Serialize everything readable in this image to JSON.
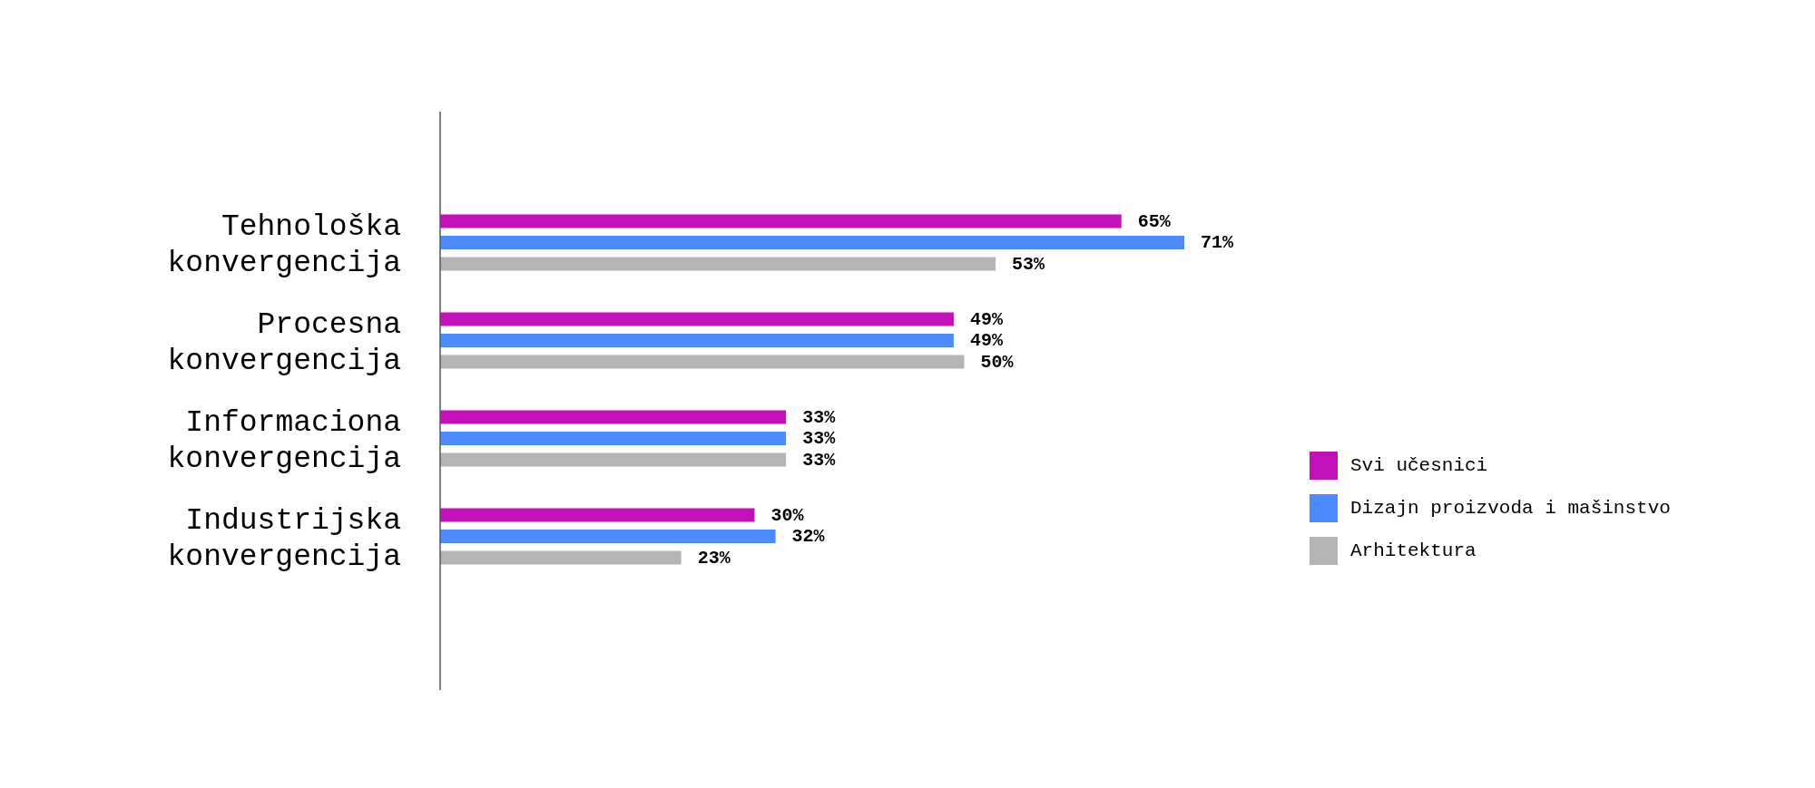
{
  "chart_data": {
    "type": "bar",
    "orientation": "horizontal",
    "categories": [
      "Tehnološka konvergencija",
      "Procesna konvergencija",
      "Informaciona konvergencija",
      "Industrijska konvergencija"
    ],
    "series": [
      {
        "name": "Svi učesnici",
        "color": "#c311b9",
        "values": [
          65,
          49,
          33,
          30
        ],
        "value_labels": [
          "65%",
          "49%",
          "33%",
          "30%"
        ]
      },
      {
        "name": "Dizajn proizvoda i mašinstvo",
        "color": "#4b8bff",
        "values": [
          71,
          49,
          33,
          32
        ],
        "value_labels": [
          "71%",
          "49%",
          "33%",
          "32%"
        ]
      },
      {
        "name": "Arhitektura",
        "color": "#b4b4b4",
        "values": [
          53,
          50,
          33,
          23
        ],
        "value_labels": [
          "53%",
          "50%",
          "33%",
          "23%"
        ]
      }
    ],
    "legend": "right"
  }
}
